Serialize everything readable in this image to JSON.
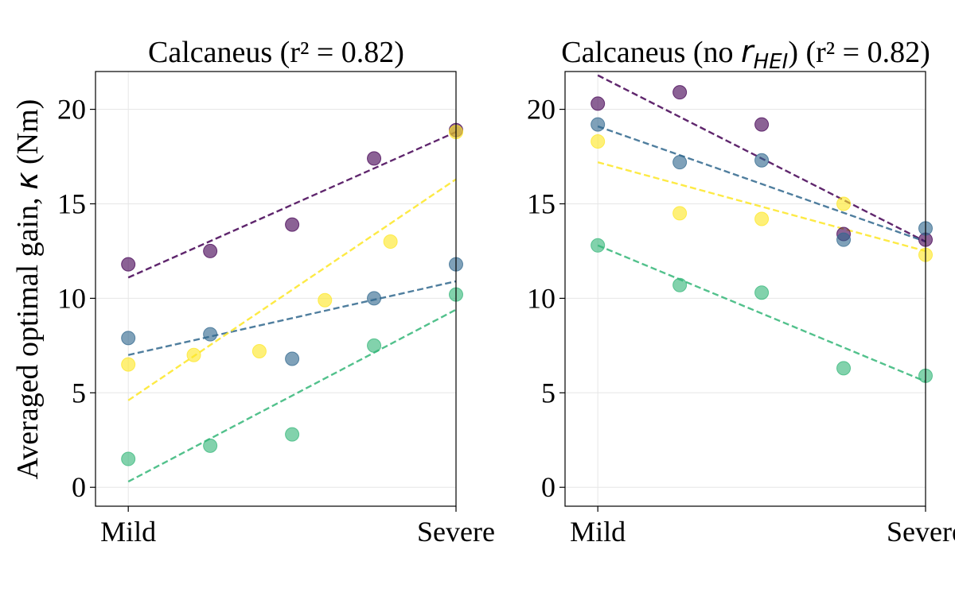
{
  "chart_data": [
    {
      "type": "scatter",
      "panel": "left",
      "title": "Calcaneus (r² = 0.82)",
      "title_parts": {
        "prefix": "Calcaneus",
        "math": "",
        "math_sub": "",
        "suffix": "(r² = 0.82)"
      },
      "ylabel_prefix": "Averaged optimal gain,",
      "ylabel_symbol": "κ",
      "ylabel_suffix": "(Nm)",
      "xlim": [
        -0.1,
        1.0
      ],
      "ylim": [
        -1,
        22
      ],
      "x_ticks": [
        {
          "value": 0,
          "label": "Mild"
        },
        {
          "value": 1,
          "label": "Severe"
        }
      ],
      "y_ticks": [
        0,
        5,
        10,
        15,
        20
      ],
      "grid": true,
      "series": [
        {
          "name": "series-purple",
          "color": "#440154",
          "x": [
            0,
            0.25,
            0.5,
            0.75,
            1.0
          ],
          "y": [
            11.8,
            12.5,
            13.9,
            17.4,
            18.9
          ],
          "trend": [
            11.1,
            18.8
          ]
        },
        {
          "name": "series-blue",
          "color": "#31688e",
          "x": [
            0,
            0.25,
            0.5,
            0.75,
            1.0
          ],
          "y": [
            7.9,
            8.1,
            6.8,
            10.0,
            11.8
          ],
          "trend": [
            7.0,
            10.9
          ]
        },
        {
          "name": "series-green",
          "color": "#35b779",
          "x": [
            0,
            0.25,
            0.5,
            0.75,
            1.0
          ],
          "y": [
            1.5,
            2.2,
            2.8,
            7.5,
            10.2
          ],
          "trend": [
            0.3,
            9.4
          ]
        },
        {
          "name": "series-yellow",
          "color": "#fde725",
          "x": [
            0,
            0.2,
            0.4,
            0.6,
            0.8,
            1.0
          ],
          "y": [
            6.5,
            7.0,
            7.2,
            9.9,
            13.0,
            18.8
          ],
          "trend": [
            4.6,
            16.3
          ]
        }
      ]
    },
    {
      "type": "scatter",
      "panel": "right",
      "title": "Calcaneus (no r_HEI) (r² = 0.82)",
      "title_parts": {
        "prefix": "Calcaneus (no",
        "math": "r",
        "math_sub": "HEI",
        "suffix": ") (r² = 0.82)"
      },
      "ylabel_prefix": "",
      "ylabel_symbol": "",
      "ylabel_suffix": "",
      "xlim": [
        -0.1,
        1.0
      ],
      "ylim": [
        -1,
        22
      ],
      "x_ticks": [
        {
          "value": 0,
          "label": "Mild"
        },
        {
          "value": 1,
          "label": "Severe"
        }
      ],
      "y_ticks": [
        0,
        5,
        10,
        15,
        20
      ],
      "grid": true,
      "series": [
        {
          "name": "series-purple",
          "color": "#440154",
          "x": [
            0,
            0.25,
            0.5,
            0.75,
            1.0
          ],
          "y": [
            20.3,
            20.9,
            19.2,
            13.4,
            13.1
          ],
          "trend": [
            21.8,
            13.0
          ]
        },
        {
          "name": "series-blue",
          "color": "#31688e",
          "x": [
            0,
            0.25,
            0.5,
            0.75,
            1.0
          ],
          "y": [
            19.2,
            17.2,
            17.3,
            13.1,
            13.7
          ],
          "trend": [
            19.1,
            13.0
          ]
        },
        {
          "name": "series-yellow",
          "color": "#fde725",
          "x": [
            0,
            0.25,
            0.5,
            0.75,
            1.0
          ],
          "y": [
            18.3,
            14.5,
            14.2,
            15.0,
            12.3
          ],
          "trend": [
            17.2,
            12.5
          ]
        },
        {
          "name": "series-green",
          "color": "#35b779",
          "x": [
            0,
            0.25,
            0.5,
            0.75,
            1.0
          ],
          "y": [
            12.8,
            10.7,
            10.3,
            6.3,
            5.9
          ],
          "trend": [
            12.8,
            5.6
          ]
        }
      ]
    }
  ]
}
